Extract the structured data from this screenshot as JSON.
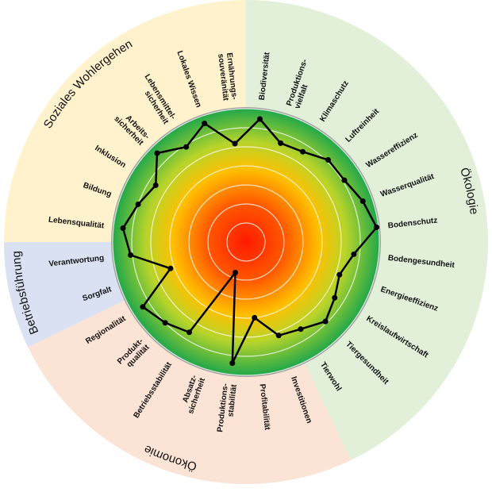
{
  "chart_data": {
    "type": "radar",
    "ylim": [
      0,
      7
    ],
    "yticks": [
      1,
      2,
      3,
      4,
      5,
      6,
      7
    ],
    "grid": true,
    "line_color": "#000000",
    "groups": [
      {
        "name": "Ökologie",
        "color": "#e2efd9",
        "categories": [
          [
            "Biodiversität"
          ],
          [
            "Produktions-",
            "vielfalt"
          ],
          [
            "Klimaschutz"
          ],
          [
            "Luftreinheit"
          ],
          [
            "Wassereffizienz"
          ],
          [
            "Wasserqualität"
          ],
          [
            "Bodenschutz"
          ],
          [
            "Bodengesundheit"
          ],
          [
            "Energieeffizienz"
          ],
          [
            "Kreislaufwirtschaft"
          ],
          [
            "Tiergesundheit"
          ],
          [
            "Tierwohl"
          ]
        ],
        "values": [
          6.5,
          5.5,
          5.6,
          6.1,
          6.1,
          6.5,
          6.9,
          5.7,
          5.2,
          5.5,
          5.9,
          5.4
        ]
      },
      {
        "name": "Ökonomie",
        "color": "#fbe4d5",
        "categories": [
          [
            "Investitionen"
          ],
          [
            "Profitabilität"
          ],
          [
            "Produktions-",
            "stabilität"
          ],
          [
            "Absatz-",
            "sicherheit"
          ],
          [
            "Betriebsstabilität"
          ],
          [
            "Produkt-",
            "qualität"
          ],
          [
            "Regionalität"
          ]
        ],
        "values": [
          5.2,
          4.0,
          6.4,
          1.7,
          5.6,
          6.0,
          6.4
        ]
      },
      {
        "name": "Betriebsführung",
        "color": "#d9e1f2",
        "categories": [
          [
            "Sorgfalt"
          ],
          [
            "Verantwortung"
          ]
        ],
        "values": [
          4.2,
          6.1
        ]
      },
      {
        "name": "Soziales Wohlergehen",
        "color": "#fff2cc",
        "categories": [
          [
            "Lebensqualität"
          ],
          [
            "Bildung"
          ],
          [
            "Inklusion"
          ],
          [
            "Arbeits-",
            "sicherheit"
          ],
          [
            "Lebensmittel-",
            "sicherheit"
          ],
          [
            "Lokales Wissen"
          ],
          [
            "Ernährungs-",
            "souveränität"
          ]
        ],
        "values": [
          6.5,
          6.0,
          5.6,
          6.6,
          5.9,
          6.6,
          5.2
        ]
      }
    ]
  }
}
